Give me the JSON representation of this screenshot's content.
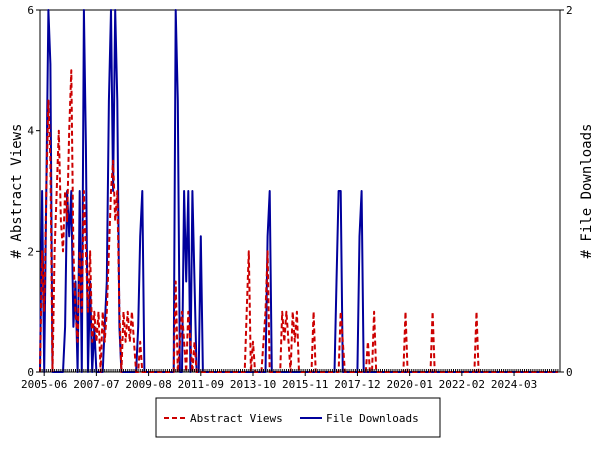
{
  "chart_data": {
    "type": "line",
    "title": "",
    "y_left": {
      "label": "# Abstract Views",
      "ylim": [
        0,
        6
      ],
      "ticks": [
        "0",
        "2",
        "4",
        "6"
      ]
    },
    "y_right": {
      "label": "# File Downloads",
      "ylim": [
        0,
        2
      ],
      "ticks": [
        "0",
        "2"
      ]
    },
    "x_axis": {
      "range": [
        "2005-04",
        "2026-01"
      ],
      "tick_labels": [
        "2005-06",
        "2007-07",
        "2009-08",
        "2011-09",
        "2013-10",
        "2015-11",
        "2017-12",
        "2020-01",
        "2022-02",
        "2024-03"
      ]
    },
    "grid": false,
    "legend": {
      "placement": "bottom-center"
    },
    "series": [
      {
        "name": "Abstract Views",
        "axis": "left",
        "color": "#cc0000",
        "style": "dashed",
        "points": [
          [
            "2005-04",
            0
          ],
          [
            "2005-05",
            2
          ],
          [
            "2005-06",
            1
          ],
          [
            "2005-07",
            3
          ],
          [
            "2005-08",
            4.5
          ],
          [
            "2005-09",
            3.5
          ],
          [
            "2005-10",
            0
          ],
          [
            "2005-11",
            2
          ],
          [
            "2005-12",
            3
          ],
          [
            "2006-01",
            4
          ],
          [
            "2006-02",
            2.5
          ],
          [
            "2006-03",
            2
          ],
          [
            "2006-04",
            3
          ],
          [
            "2006-05",
            2.5
          ],
          [
            "2006-06",
            4
          ],
          [
            "2006-07",
            5
          ],
          [
            "2006-08",
            2
          ],
          [
            "2006-09",
            1
          ],
          [
            "2006-10",
            0.5
          ],
          [
            "2006-11",
            2
          ],
          [
            "2006-12",
            1
          ],
          [
            "2007-01",
            3
          ],
          [
            "2007-02",
            2
          ],
          [
            "2007-03",
            1
          ],
          [
            "2007-04",
            2
          ],
          [
            "2007-05",
            0.5
          ],
          [
            "2007-06",
            1
          ],
          [
            "2007-07",
            0.5
          ],
          [
            "2007-08",
            1
          ],
          [
            "2007-09",
            0
          ],
          [
            "2007-10",
            1
          ],
          [
            "2007-11",
            0.5
          ],
          [
            "2007-12",
            1
          ],
          [
            "2008-01",
            2
          ],
          [
            "2008-02",
            3
          ],
          [
            "2008-03",
            3.5
          ],
          [
            "2008-04",
            2.5
          ],
          [
            "2008-05",
            3
          ],
          [
            "2008-06",
            1
          ],
          [
            "2008-07",
            0
          ],
          [
            "2008-08",
            1
          ],
          [
            "2008-09",
            0.5
          ],
          [
            "2008-10",
            1
          ],
          [
            "2008-11",
            0.5
          ],
          [
            "2008-12",
            1
          ],
          [
            "2009-01",
            0.5
          ],
          [
            "2009-02",
            0
          ],
          [
            "2009-03",
            0
          ],
          [
            "2009-04",
            0.5
          ],
          [
            "2009-05",
            0
          ],
          [
            "2009-06",
            0
          ],
          [
            "2010-08",
            0
          ],
          [
            "2010-09",
            1.5
          ],
          [
            "2010-10",
            0
          ],
          [
            "2010-11",
            0.5
          ],
          [
            "2010-12",
            1
          ],
          [
            "2011-01",
            0.5
          ],
          [
            "2011-02",
            0
          ],
          [
            "2011-03",
            1
          ],
          [
            "2011-04",
            0.5
          ],
          [
            "2011-05",
            0
          ],
          [
            "2011-06",
            0.5
          ],
          [
            "2011-07",
            0
          ],
          [
            "2013-06",
            0
          ],
          [
            "2013-07",
            1
          ],
          [
            "2013-08",
            2
          ],
          [
            "2013-09",
            0
          ],
          [
            "2013-10",
            0.5
          ],
          [
            "2013-11",
            0
          ],
          [
            "2014-02",
            0
          ],
          [
            "2014-03",
            0.5
          ],
          [
            "2014-04",
            1
          ],
          [
            "2014-05",
            2
          ],
          [
            "2014-06",
            0
          ],
          [
            "2014-11",
            0
          ],
          [
            "2014-12",
            1
          ],
          [
            "2015-01",
            0.5
          ],
          [
            "2015-02",
            1
          ],
          [
            "2015-03",
            0.5
          ],
          [
            "2015-04",
            0
          ],
          [
            "2015-05",
            1
          ],
          [
            "2015-06",
            0.5
          ],
          [
            "2015-07",
            1
          ],
          [
            "2015-08",
            0
          ],
          [
            "2016-02",
            0
          ],
          [
            "2016-03",
            1
          ],
          [
            "2016-04",
            0
          ],
          [
            "2017-03",
            0
          ],
          [
            "2017-04",
            1
          ],
          [
            "2017-05",
            0.5
          ],
          [
            "2017-06",
            0
          ],
          [
            "2018-04",
            0
          ],
          [
            "2018-05",
            0.5
          ],
          [
            "2018-06",
            0
          ],
          [
            "2018-07",
            0
          ],
          [
            "2018-08",
            1
          ],
          [
            "2018-09",
            0
          ],
          [
            "2019-10",
            0
          ],
          [
            "2019-11",
            1
          ],
          [
            "2019-12",
            0
          ],
          [
            "2020-11",
            0
          ],
          [
            "2020-12",
            1
          ],
          [
            "2021-01",
            0
          ],
          [
            "2022-08",
            0
          ],
          [
            "2022-09",
            1
          ],
          [
            "2022-10",
            0
          ],
          [
            "2025-12",
            0
          ]
        ]
      },
      {
        "name": "File Downloads",
        "axis": "right",
        "color": "#00009c",
        "style": "solid",
        "points": [
          [
            "2005-04",
            0
          ],
          [
            "2005-05",
            1
          ],
          [
            "2005-06",
            0
          ],
          [
            "2005-07",
            1
          ],
          [
            "2005-08",
            2
          ],
          [
            "2005-09",
            1.7
          ],
          [
            "2005-10",
            0
          ],
          [
            "2005-11",
            0
          ],
          [
            "2005-12",
            0
          ],
          [
            "2006-01",
            0
          ],
          [
            "2006-02",
            0
          ],
          [
            "2006-03",
            0
          ],
          [
            "2006-04",
            0.25
          ],
          [
            "2006-05",
            1
          ],
          [
            "2006-06",
            0.75
          ],
          [
            "2006-07",
            1
          ],
          [
            "2006-08",
            0.25
          ],
          [
            "2006-09",
            0.5
          ],
          [
            "2006-10",
            0
          ],
          [
            "2006-11",
            1
          ],
          [
            "2006-12",
            0
          ],
          [
            "2007-01",
            2
          ],
          [
            "2007-02",
            1.25
          ],
          [
            "2007-03",
            0
          ],
          [
            "2007-04",
            0.5
          ],
          [
            "2007-05",
            0
          ],
          [
            "2007-06",
            0.25
          ],
          [
            "2007-07",
            0
          ],
          [
            "2007-08",
            0
          ],
          [
            "2007-09",
            0
          ],
          [
            "2007-10",
            0
          ],
          [
            "2007-11",
            0.25
          ],
          [
            "2007-12",
            0.5
          ],
          [
            "2008-01",
            1.5
          ],
          [
            "2008-02",
            2
          ],
          [
            "2008-03",
            1
          ],
          [
            "2008-04",
            2
          ],
          [
            "2008-05",
            1.5
          ],
          [
            "2008-06",
            0.25
          ],
          [
            "2008-07",
            0
          ],
          [
            "2008-08",
            0
          ],
          [
            "2008-09",
            0
          ],
          [
            "2008-10",
            0
          ],
          [
            "2008-11",
            0
          ],
          [
            "2008-12",
            0
          ],
          [
            "2009-01",
            0
          ],
          [
            "2009-02",
            0
          ],
          [
            "2009-03",
            0.25
          ],
          [
            "2009-04",
            0.75
          ],
          [
            "2009-05",
            1
          ],
          [
            "2009-06",
            0
          ],
          [
            "2010-08",
            0
          ],
          [
            "2010-09",
            2
          ],
          [
            "2010-10",
            1.5
          ],
          [
            "2010-11",
            0
          ],
          [
            "2010-12",
            0
          ],
          [
            "2011-01",
            1
          ],
          [
            "2011-02",
            0.5
          ],
          [
            "2011-03",
            1
          ],
          [
            "2011-04",
            0
          ],
          [
            "2011-05",
            1
          ],
          [
            "2011-06",
            0.5
          ],
          [
            "2011-07",
            0
          ],
          [
            "2011-08",
            0
          ],
          [
            "2011-09",
            0.75
          ],
          [
            "2011-10",
            0
          ],
          [
            "2014-04",
            0
          ],
          [
            "2014-05",
            0.75
          ],
          [
            "2014-06",
            1
          ],
          [
            "2014-07",
            0
          ],
          [
            "2017-01",
            0
          ],
          [
            "2017-02",
            0.5
          ],
          [
            "2017-03",
            1
          ],
          [
            "2017-04",
            1
          ],
          [
            "2017-05",
            0
          ],
          [
            "2017-06",
            0
          ],
          [
            "2017-12",
            0
          ],
          [
            "2018-01",
            0.75
          ],
          [
            "2018-02",
            1
          ],
          [
            "2018-03",
            0
          ],
          [
            "2018-04",
            0
          ],
          [
            "2018-05",
            0
          ],
          [
            "2025-12",
            0
          ]
        ]
      }
    ]
  }
}
